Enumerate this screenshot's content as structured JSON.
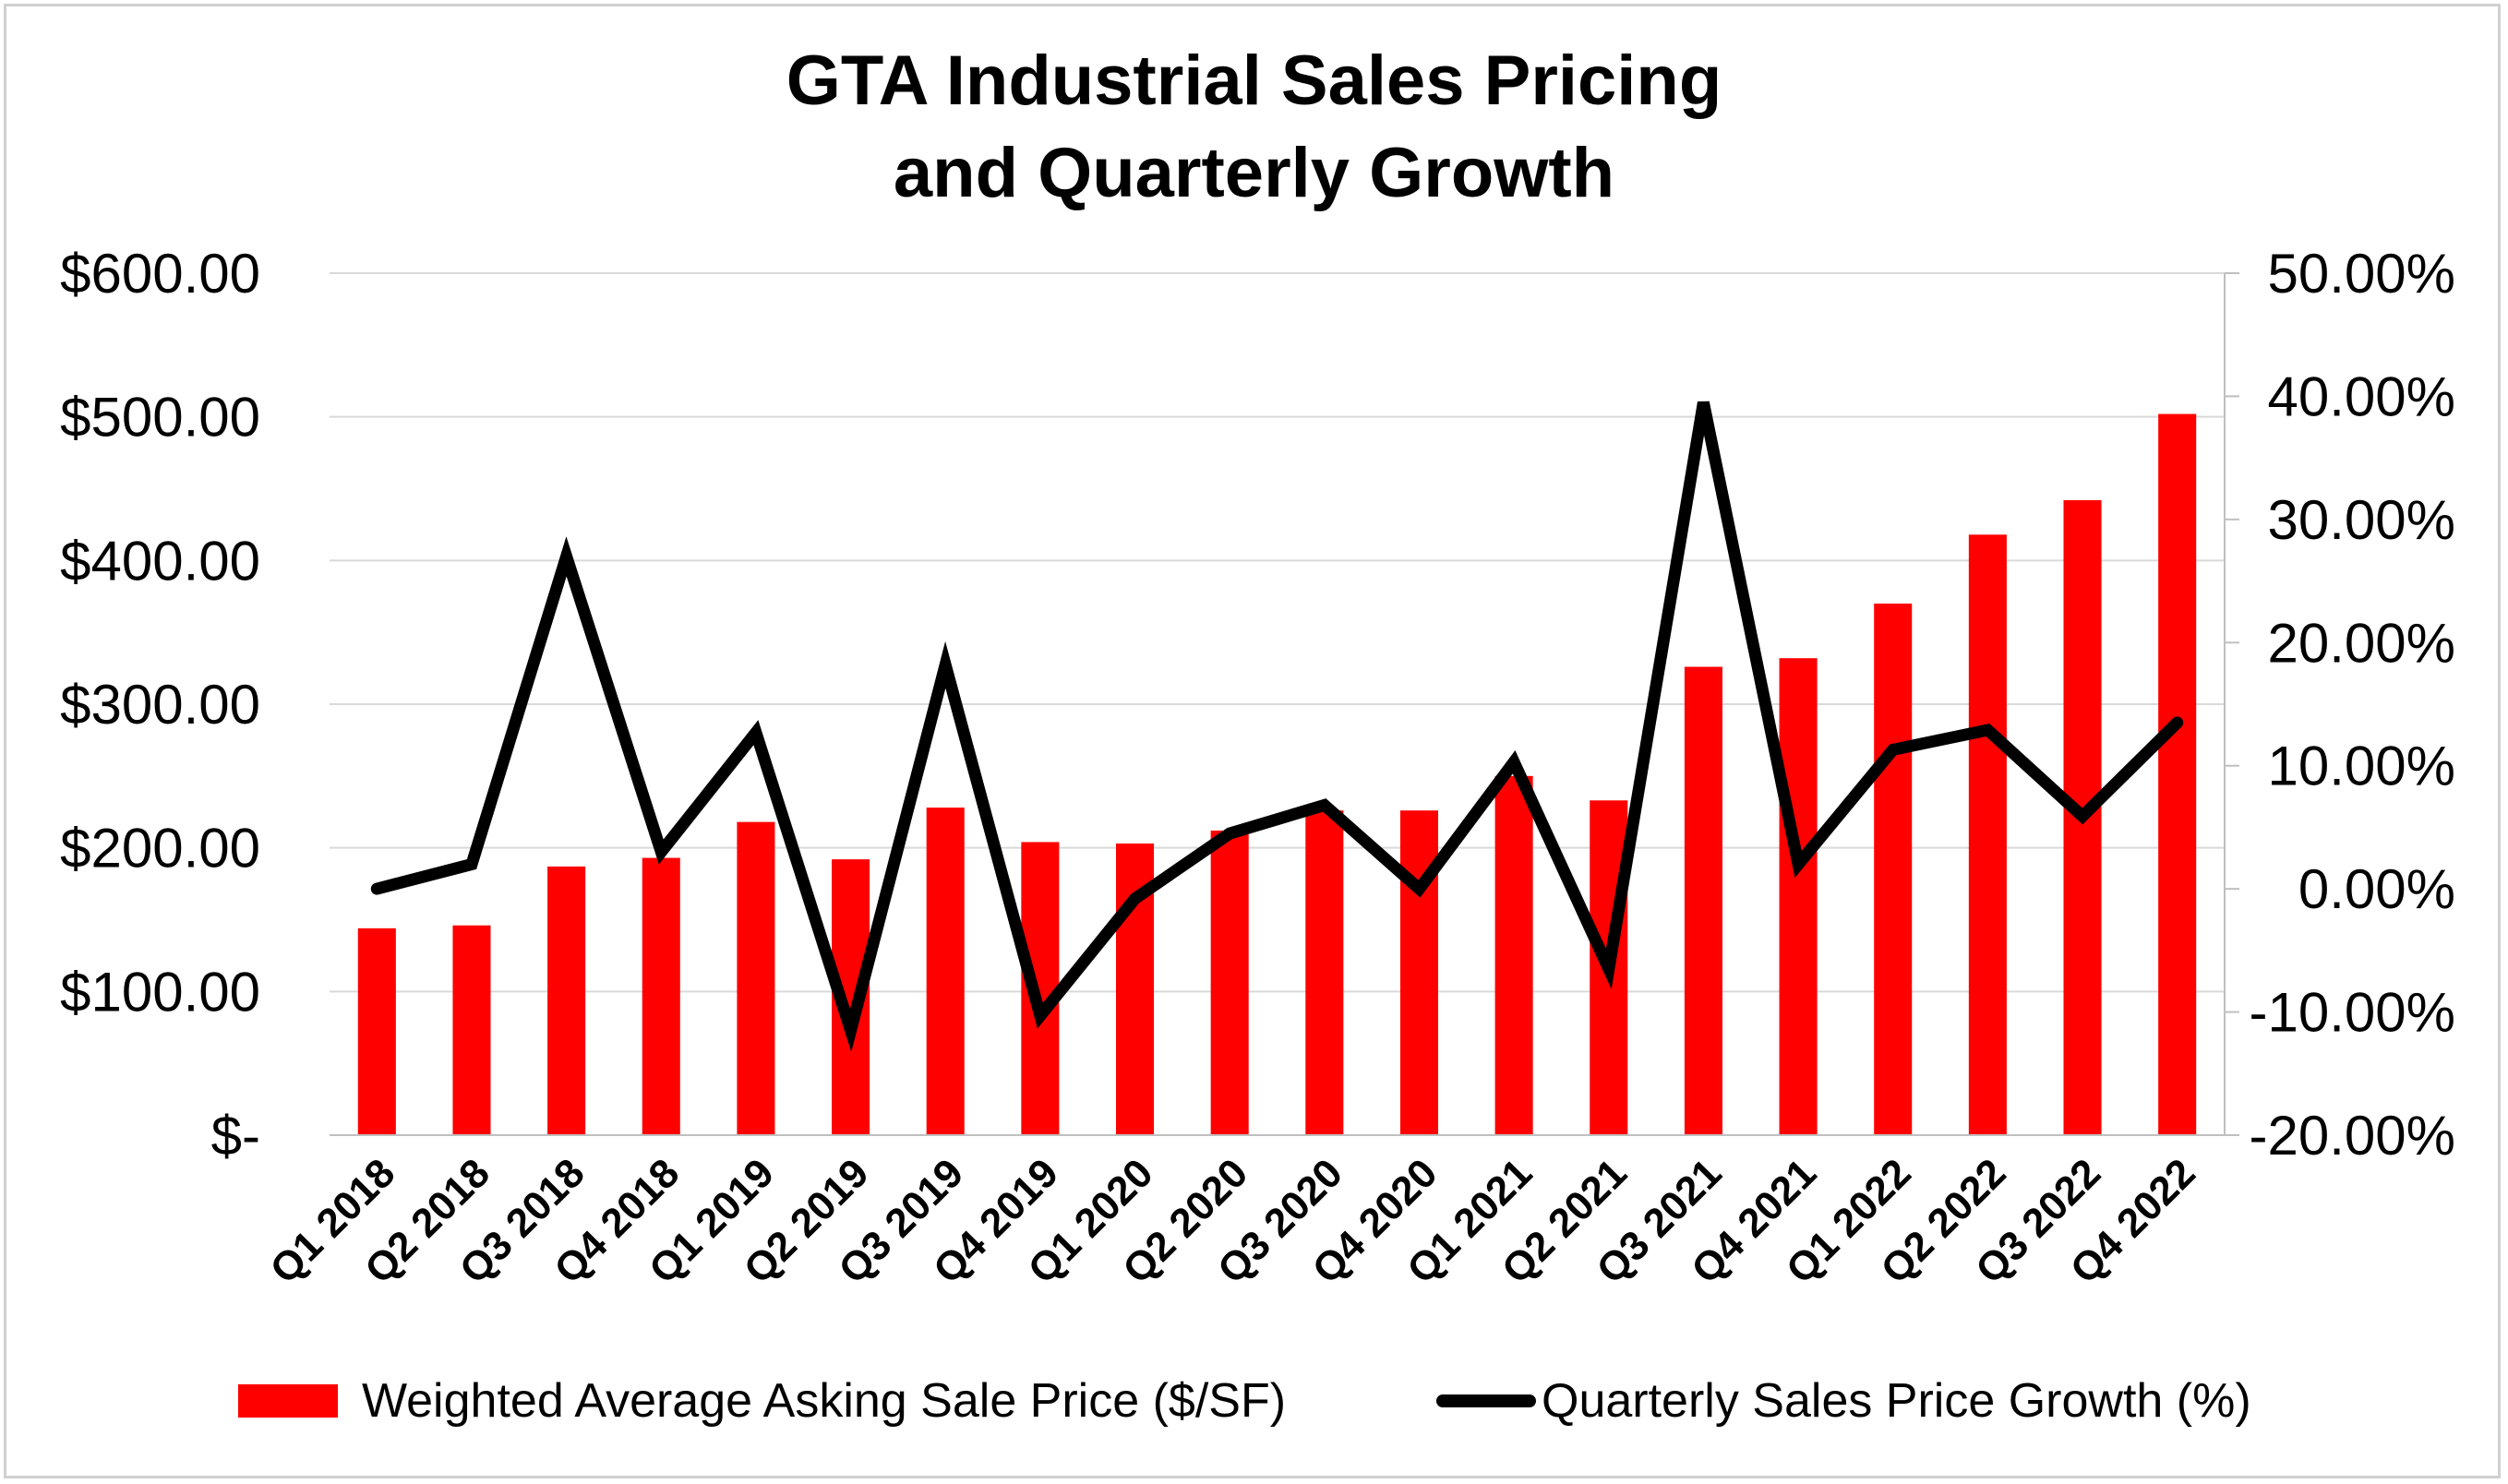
{
  "chart_data": {
    "type": "bar+line",
    "title_line1": "GTA Industrial Sales Pricing",
    "title_line2": "and Quarterly Growth",
    "categories": [
      "Q1 2018",
      "Q2 2018",
      "Q3 2018",
      "Q4 2018",
      "Q1 2019",
      "Q2 2019",
      "Q3 2019",
      "Q4 2019",
      "Q1 2020",
      "Q2 2020",
      "Q3 2020",
      "Q4 2020",
      "Q1 2021",
      "Q2 2021",
      "Q3 2021",
      "Q4 2021",
      "Q1 2022",
      "Q2 2022",
      "Q3 2022",
      "Q4 2022"
    ],
    "series": [
      {
        "name": "Weighted Average Asking Sale Price ($/SF)",
        "type": "bar",
        "axis": "left",
        "color": "#ff0000",
        "values": [
          144,
          146,
          187,
          193,
          218,
          192,
          228,
          204,
          203,
          212,
          226,
          226,
          250,
          233,
          326,
          332,
          370,
          418,
          442,
          502
        ]
      },
      {
        "name": "Quarterly Sales Price Growth (%)",
        "type": "line",
        "axis": "right",
        "color": "#000000",
        "values": [
          0.0,
          2.0,
          27.0,
          3.0,
          12.7,
          -11.5,
          18.2,
          -10.3,
          -0.8,
          4.5,
          6.8,
          0.0,
          10.3,
          -6.5,
          39.5,
          2.0,
          11.3,
          12.9,
          5.9,
          13.5
        ]
      }
    ],
    "y_left": {
      "min": 0,
      "max": 600,
      "step": 100,
      "tick_labels": [
        "$-",
        "$100.00",
        "$200.00",
        "$300.00",
        "$400.00",
        "$500.00",
        "$600.00"
      ]
    },
    "y_right": {
      "min": -20,
      "max": 50,
      "step": 10,
      "tick_labels": [
        "-20.00%",
        "-10.00%",
        "0.00%",
        "10.00%",
        "20.00%",
        "30.00%",
        "40.00%",
        "50.00%"
      ]
    },
    "grid": "horizontal",
    "legend_position": "bottom"
  }
}
